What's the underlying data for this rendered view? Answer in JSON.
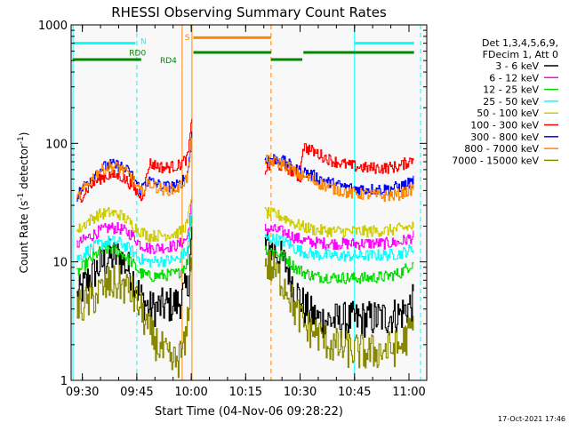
{
  "chart_data": {
    "type": "line",
    "title": "RHESSI Observing Summary Count Rates",
    "xlabel": "Start Time (04-Nov-06 09:28:22)",
    "ylabel_parts": [
      "Count Rate (s",
      "-1",
      " detector",
      "-1",
      ")"
    ],
    "yscale": "log",
    "ylim": [
      1,
      1000
    ],
    "xlim_minutes": [
      -1.5,
      96.5
    ],
    "x_ticks": [
      {
        "t": 1.6,
        "label": "09:30"
      },
      {
        "t": 16.6,
        "label": "09:45"
      },
      {
        "t": 31.6,
        "label": "10:00"
      },
      {
        "t": 46.6,
        "label": "10:15"
      },
      {
        "t": 61.6,
        "label": "10:30"
      },
      {
        "t": 76.6,
        "label": "10:45"
      },
      {
        "t": 91.6,
        "label": "11:00"
      }
    ],
    "y_ticks": [
      {
        "v": 1,
        "label": "1"
      },
      {
        "v": 10,
        "label": "10"
      },
      {
        "v": 100,
        "label": "100"
      },
      {
        "v": 1000,
        "label": "1000"
      }
    ],
    "legend": {
      "header": [
        "Det 1,3,4,5,6,9,",
        "FDecim 1, Att 0"
      ],
      "placement": "right",
      "entries": [
        {
          "label": "3 - 6 keV",
          "color": "#000000"
        },
        {
          "label": "6 - 12 keV",
          "color": "#ff00ff"
        },
        {
          "label": "12 - 25 keV",
          "color": "#00dd00"
        },
        {
          "label": "25 - 50 keV",
          "color": "#00ffff"
        },
        {
          "label": "50 - 100 keV",
          "color": "#cccc00"
        },
        {
          "label": "100 - 300 keV",
          "color": "#ff0000"
        },
        {
          "label": "300 - 800 keV",
          "color": "#0000ff"
        },
        {
          "label": "800 - 7000 keV",
          "color": "#ff8800"
        },
        {
          "label": "7000 - 15000 keV",
          "color": "#888800"
        }
      ]
    },
    "gap_minutes": [
      33.5,
      51.5
    ],
    "series": [
      {
        "band": "3-6 keV",
        "color": "#000000",
        "pts": [
          [
            0,
            5
          ],
          [
            3,
            7
          ],
          [
            6,
            9
          ],
          [
            9,
            11
          ],
          [
            12,
            11
          ],
          [
            15,
            8
          ],
          [
            17.6,
            5
          ],
          [
            20,
            4
          ],
          [
            24,
            4.2
          ],
          [
            28,
            4.5
          ],
          [
            30.5,
            6
          ],
          [
            31.8,
            18
          ],
          [
            51.8,
            14
          ],
          [
            55,
            12
          ],
          [
            58,
            9
          ],
          [
            60,
            6
          ],
          [
            63,
            4
          ],
          [
            66,
            3.3
          ],
          [
            70,
            3.2
          ],
          [
            75,
            3.2
          ],
          [
            80,
            3.3
          ],
          [
            85,
            3.4
          ],
          [
            89,
            3.6
          ],
          [
            93,
            4.6
          ]
        ]
      },
      {
        "band": "6-12 keV",
        "color": "#ff00ff",
        "pts": [
          [
            0,
            14
          ],
          [
            3,
            16
          ],
          [
            6,
            18
          ],
          [
            9,
            19.5
          ],
          [
            12,
            19
          ],
          [
            15,
            17
          ],
          [
            17.6,
            14
          ],
          [
            20,
            13
          ],
          [
            24,
            13.3
          ],
          [
            28,
            13.8
          ],
          [
            30.5,
            16
          ],
          [
            31.8,
            35
          ],
          [
            51.8,
            19
          ],
          [
            55,
            18.5
          ],
          [
            58,
            17.5
          ],
          [
            60,
            16
          ],
          [
            63,
            15
          ],
          [
            66,
            14.5
          ],
          [
            70,
            14.3
          ],
          [
            75,
            14.2
          ],
          [
            80,
            14.3
          ],
          [
            85,
            14.3
          ],
          [
            89,
            14.6
          ],
          [
            93,
            16.5
          ]
        ]
      },
      {
        "band": "12-25 keV",
        "color": "#00dd00",
        "pts": [
          [
            0,
            8
          ],
          [
            3,
            10
          ],
          [
            6,
            12
          ],
          [
            9,
            13
          ],
          [
            12,
            12
          ],
          [
            15,
            10
          ],
          [
            17.6,
            8
          ],
          [
            20,
            7.5
          ],
          [
            24,
            7.7
          ],
          [
            28,
            8
          ],
          [
            30.5,
            10
          ],
          [
            31.8,
            28
          ],
          [
            51.8,
            13
          ],
          [
            55,
            12
          ],
          [
            58,
            10.5
          ],
          [
            60,
            9
          ],
          [
            63,
            8
          ],
          [
            66,
            7.5
          ],
          [
            70,
            7.4
          ],
          [
            75,
            7.3
          ],
          [
            80,
            7.3
          ],
          [
            85,
            7.5
          ],
          [
            89,
            8
          ],
          [
            93,
            10
          ]
        ]
      },
      {
        "band": "25-50 keV",
        "color": "#00ffff",
        "pts": [
          [
            0,
            10.5
          ],
          [
            3,
            12.5
          ],
          [
            6,
            14
          ],
          [
            9,
            15
          ],
          [
            12,
            14.5
          ],
          [
            15,
            12.5
          ],
          [
            17.6,
            10.5
          ],
          [
            20,
            10
          ],
          [
            24,
            10.2
          ],
          [
            28,
            10.5
          ],
          [
            30.5,
            12.5
          ],
          [
            31.8,
            30
          ],
          [
            51.8,
            16
          ],
          [
            55,
            15.5
          ],
          [
            58,
            14.5
          ],
          [
            60,
            13
          ],
          [
            63,
            12
          ],
          [
            66,
            11.5
          ],
          [
            70,
            11.3
          ],
          [
            75,
            11.2
          ],
          [
            80,
            11.3
          ],
          [
            85,
            11.4
          ],
          [
            89,
            11.7
          ],
          [
            93,
            13
          ]
        ]
      },
      {
        "band": "50-100 keV",
        "color": "#cccc00",
        "pts": [
          [
            0,
            18
          ],
          [
            3,
            22
          ],
          [
            6,
            25
          ],
          [
            9,
            26
          ],
          [
            12,
            25
          ],
          [
            15,
            21
          ],
          [
            17.6,
            18
          ],
          [
            20,
            16.5
          ],
          [
            24,
            16.8
          ],
          [
            28,
            17.5
          ],
          [
            30.5,
            21
          ],
          [
            31.8,
            42
          ],
          [
            51.8,
            26
          ],
          [
            55,
            25
          ],
          [
            58,
            23
          ],
          [
            60,
            21
          ],
          [
            63,
            19.5
          ],
          [
            66,
            18.5
          ],
          [
            70,
            18.2
          ],
          [
            75,
            18
          ],
          [
            80,
            18.1
          ],
          [
            85,
            18.3
          ],
          [
            89,
            19
          ],
          [
            93,
            20
          ]
        ]
      },
      {
        "band": "100-300 keV",
        "color": "#ff0000",
        "pts": [
          [
            0,
            32
          ],
          [
            3,
            42
          ],
          [
            6,
            50
          ],
          [
            9,
            54
          ],
          [
            12,
            53
          ],
          [
            15,
            45
          ],
          [
            17.6,
            35
          ],
          [
            18.5,
            40
          ],
          [
            20,
            68
          ],
          [
            24,
            62
          ],
          [
            28,
            65
          ],
          [
            30.5,
            75
          ],
          [
            31.8,
            160
          ],
          [
            51.8,
            60
          ],
          [
            54,
            68
          ],
          [
            58,
            62
          ],
          [
            60,
            56
          ],
          [
            61.5,
            50
          ],
          [
            62.2,
            95
          ],
          [
            66,
            83
          ],
          [
            70,
            72
          ],
          [
            75,
            65
          ],
          [
            80,
            62
          ],
          [
            85,
            62
          ],
          [
            89,
            64
          ],
          [
            93,
            75
          ]
        ]
      },
      {
        "band": "300-800 keV",
        "color": "#0000ff",
        "pts": [
          [
            0,
            36
          ],
          [
            3,
            48
          ],
          [
            6,
            60
          ],
          [
            9,
            66
          ],
          [
            12,
            65
          ],
          [
            15,
            55
          ],
          [
            17.6,
            40
          ],
          [
            18.5,
            46
          ],
          [
            20,
            48
          ],
          [
            24,
            43
          ],
          [
            28,
            44
          ],
          [
            30.5,
            55
          ],
          [
            31.8,
            130
          ],
          [
            51.8,
            75
          ],
          [
            55,
            74
          ],
          [
            58,
            68
          ],
          [
            60,
            60
          ],
          [
            63,
            57
          ],
          [
            66,
            52
          ],
          [
            70,
            46
          ],
          [
            75,
            42
          ],
          [
            80,
            41
          ],
          [
            85,
            41
          ],
          [
            89,
            43
          ],
          [
            93,
            48
          ]
        ]
      },
      {
        "band": "800-7000 keV",
        "color": "#ff8800",
        "pts": [
          [
            0,
            34
          ],
          [
            3,
            46
          ],
          [
            6,
            58
          ],
          [
            9,
            64
          ],
          [
            12,
            62
          ],
          [
            15,
            52
          ],
          [
            17.6,
            38
          ],
          [
            18.5,
            42
          ],
          [
            20,
            46
          ],
          [
            24,
            40
          ],
          [
            28,
            42
          ],
          [
            30.5,
            52
          ],
          [
            31.8,
            120
          ],
          [
            51.8,
            72
          ],
          [
            55,
            70
          ],
          [
            58,
            64
          ],
          [
            60,
            57
          ],
          [
            63,
            52
          ],
          [
            66,
            47
          ],
          [
            70,
            42
          ],
          [
            75,
            38
          ],
          [
            80,
            37
          ],
          [
            85,
            36
          ],
          [
            89,
            37
          ],
          [
            93,
            42
          ]
        ]
      },
      {
        "band": "7000-15000 keV",
        "color": "#888800",
        "pts": [
          [
            0,
            4
          ],
          [
            3,
            4.5
          ],
          [
            6,
            5.5
          ],
          [
            9,
            6.5
          ],
          [
            12,
            6.5
          ],
          [
            15,
            5.5
          ],
          [
            17.6,
            4
          ],
          [
            20,
            2.5
          ],
          [
            24,
            1.7
          ],
          [
            26,
            1.4
          ],
          [
            28,
            1.5
          ],
          [
            30,
            2
          ],
          [
            31.8,
            12
          ],
          [
            51.8,
            10
          ],
          [
            55,
            8
          ],
          [
            58,
            6
          ],
          [
            60,
            4
          ],
          [
            63,
            2.8
          ],
          [
            66,
            2.5
          ],
          [
            70,
            2
          ],
          [
            75,
            1.8
          ],
          [
            80,
            1.7
          ],
          [
            85,
            1.8
          ],
          [
            89,
            1.9
          ],
          [
            93,
            2.9
          ]
        ]
      }
    ],
    "vlines": [
      {
        "t": -1.0,
        "color": "#00ffff",
        "dash": false
      },
      {
        "t": 16.6,
        "color": "#00ffff",
        "dash": true
      },
      {
        "t": 29.1,
        "color": "#ff8800",
        "dash": false
      },
      {
        "t": 31.8,
        "color": "#ff8800",
        "dash": false
      },
      {
        "t": 53.6,
        "color": "#ff8800",
        "dash": true
      },
      {
        "t": 76.6,
        "color": "#00ffff",
        "dash": false
      },
      {
        "t": 94.8,
        "color": "#00ffff",
        "dash": true
      }
    ],
    "flag_bars": [
      {
        "name": "N",
        "color": "#00ffff",
        "y": 700,
        "segments": [
          [
            -1,
            16.2
          ],
          [
            76.6,
            93
          ]
        ]
      },
      {
        "name": "S",
        "color": "#ff8800",
        "y": 780,
        "segments": [
          [
            32.2,
            53.6
          ]
        ]
      },
      {
        "name": "RD0",
        "color": "#008800",
        "y": 585,
        "segments": [
          [
            32.2,
            53.6
          ],
          [
            62.5,
            93
          ]
        ]
      },
      {
        "name": "RD4",
        "color": "#008800",
        "y": 510,
        "segments": [
          [
            -1,
            17.8
          ],
          [
            53.6,
            62.2
          ]
        ]
      }
    ],
    "flag_labels": [
      {
        "text": "N",
        "t": 17.6,
        "y": 740,
        "color": "#00ffff"
      },
      {
        "text": "RD0",
        "t": 14.5,
        "y": 590,
        "color": "#008800"
      },
      {
        "text": "S",
        "t": 29.8,
        "y": 800,
        "color": "#ff8800"
      },
      {
        "text": "RD4",
        "t": 23.0,
        "y": 510,
        "color": "#008800"
      }
    ],
    "timestamp": "17-Oct-2021 17:46"
  }
}
